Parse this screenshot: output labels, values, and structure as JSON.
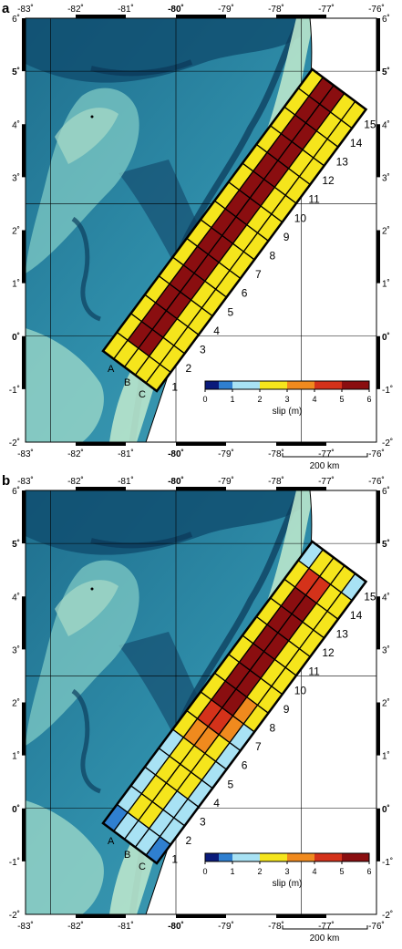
{
  "panels": [
    {
      "label": "a",
      "slip": [
        [
          3,
          3,
          3,
          3,
          3,
          3,
          3,
          3,
          3,
          3,
          3,
          3,
          3,
          3,
          3
        ],
        [
          3,
          6,
          6,
          6,
          6,
          6,
          6,
          6,
          6,
          6,
          6,
          6,
          6,
          6,
          6
        ],
        [
          3,
          6,
          6,
          6,
          6,
          6,
          6,
          6,
          6,
          6,
          6,
          6,
          6,
          6,
          6
        ],
        [
          3,
          3,
          3,
          3,
          3,
          3,
          3,
          3,
          3,
          3,
          3,
          3,
          3,
          3,
          3
        ],
        [
          3,
          3,
          3,
          3,
          3,
          3,
          3,
          3,
          3,
          3,
          3,
          3,
          3,
          3,
          3
        ]
      ]
    },
    {
      "label": "b",
      "slip": [
        [
          1,
          2,
          2,
          2,
          2,
          3,
          3,
          3,
          3,
          3,
          3,
          3,
          3,
          3,
          2
        ],
        [
          2,
          3,
          3,
          3,
          3,
          4,
          5,
          6,
          6,
          6,
          6,
          6,
          6,
          5,
          3
        ],
        [
          2,
          3,
          3,
          3,
          3,
          4,
          5,
          6,
          6,
          6,
          6,
          6,
          6,
          5,
          3
        ],
        [
          2,
          2,
          2,
          3,
          3,
          3,
          4,
          4,
          3,
          3,
          3,
          3,
          3,
          3,
          3
        ],
        [
          1,
          2,
          2,
          2,
          2,
          2,
          2,
          3,
          3,
          3,
          3,
          3,
          3,
          3,
          2
        ]
      ]
    }
  ],
  "axes": {
    "lon_ticks": [
      "-83˚",
      "-82˚",
      "-81˚",
      "-80˚",
      "-79˚",
      "-78˚",
      "-77˚",
      "-76˚"
    ],
    "lat_ticks_left": [
      "6˚",
      "5˚",
      "4˚",
      "3˚",
      "2˚",
      "1˚",
      "0˚",
      "-1˚",
      "-2˚"
    ],
    "lat_ticks_right": [
      "6˚",
      "5˚",
      "4˚",
      "3˚",
      "2˚",
      "1˚",
      "0˚",
      "-1˚",
      "-2˚"
    ],
    "lon_range": [
      -83,
      -76
    ],
    "lat_range": [
      -2,
      6
    ]
  },
  "segment_numbers": [
    "1",
    "2",
    "3",
    "4",
    "5",
    "6",
    "7",
    "8",
    "9",
    "10",
    "11",
    "12",
    "13",
    "14",
    "15"
  ],
  "site_labels": [
    "A",
    "B",
    "C"
  ],
  "colorbar": {
    "ticks": [
      "0",
      "1",
      "2",
      "3",
      "4",
      "5",
      "6"
    ],
    "label": "slip (m)",
    "colors": [
      "#0a1a7a",
      "#2f7fd0",
      "#a8e2f4",
      "#f5e51c",
      "#f08a1e",
      "#d4321a",
      "#8a0e10"
    ]
  },
  "scale_bar": {
    "label": "200 km"
  }
}
